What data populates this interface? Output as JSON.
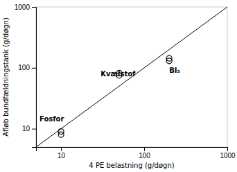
{
  "chart_data": {
    "type": "scatter",
    "xlabel": "4 PE belastning (g/døgn)",
    "ylabel": "Afløb bundfældningstank (g/døgn)",
    "log": true,
    "grid": false,
    "xlim": [
      5,
      1000
    ],
    "ylim": [
      5,
      1000
    ],
    "xticks": [
      10,
      100,
      1000
    ],
    "yticks": [
      10,
      100,
      1000
    ],
    "series": [
      {
        "type": "line",
        "color": "#000000",
        "x": [
          5,
          1000
        ],
        "values": [
          5,
          1000
        ]
      },
      {
        "type": "scatter",
        "color": "#000000",
        "marker": "circle",
        "x": [
          10,
          10
        ],
        "values": [
          8.0,
          9.0
        ]
      },
      {
        "type": "scatter",
        "color": "#000000",
        "marker": "circle",
        "x": [
          50,
          50
        ],
        "values": [
          75,
          82
        ]
      },
      {
        "type": "scatter",
        "color": "#000000",
        "marker": "circle",
        "x": [
          200,
          200
        ],
        "values": [
          130,
          143
        ]
      }
    ],
    "annotations": [
      {
        "text": "Fosfor",
        "x": 5.5,
        "y": 12.5
      },
      {
        "text": "Kvælstof",
        "x": 30,
        "y": 92
      },
      {
        "text": "BI₅",
        "x": 200,
        "y": 105
      }
    ]
  }
}
